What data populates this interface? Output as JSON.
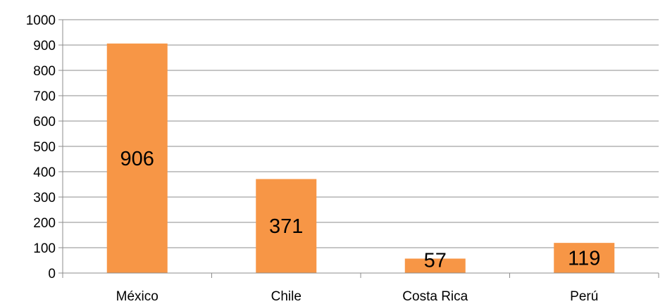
{
  "chart_data": {
    "type": "bar",
    "categories": [
      "México",
      "Chile",
      "Costa Rica",
      "Perú"
    ],
    "values": [
      906,
      371,
      57,
      119
    ],
    "data_labels": [
      "906",
      "371",
      "57",
      "119"
    ],
    "y_ticks": [
      "0",
      "100",
      "200",
      "300",
      "400",
      "500",
      "600",
      "700",
      "800",
      "900",
      "1000"
    ],
    "ylim": [
      0,
      1000
    ],
    "title": "",
    "xlabel": "",
    "ylabel": "",
    "grid": true,
    "legend": "none",
    "colors": {
      "bar": "#F79646",
      "grid": "#8C8C8C",
      "text": "#000000"
    }
  }
}
